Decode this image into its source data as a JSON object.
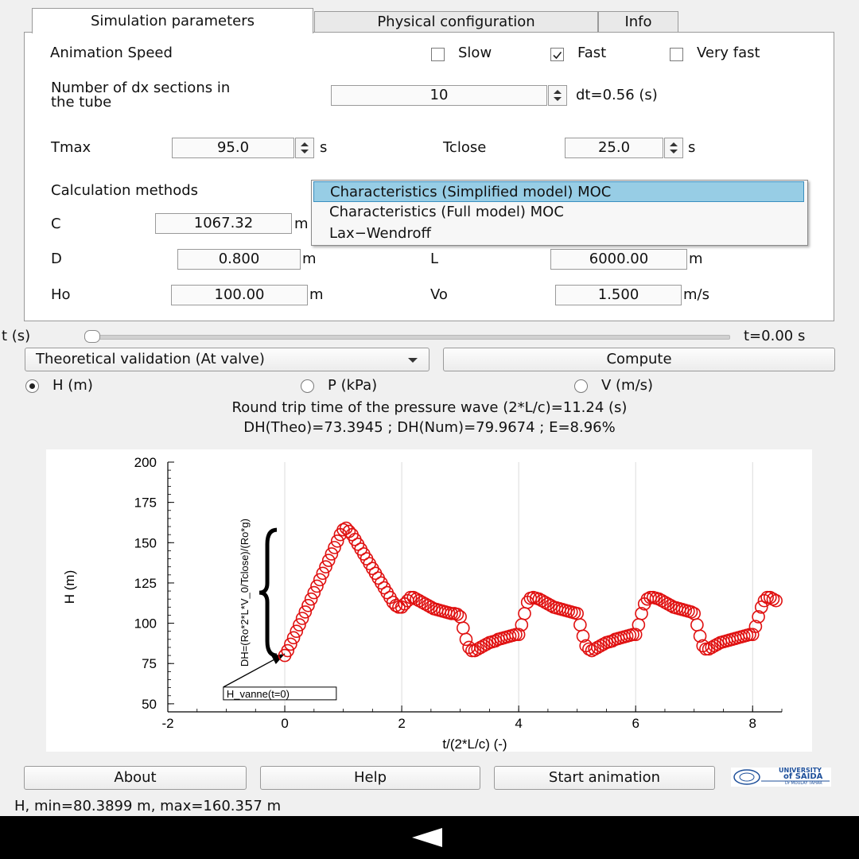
{
  "tabs": [
    {
      "label": "Simulation parameters",
      "active": true
    },
    {
      "label": "Physical configuration",
      "active": false
    },
    {
      "label": "Info",
      "active": false
    }
  ],
  "params": {
    "animation_speed_label": "Animation Speed",
    "speed_options": [
      {
        "label": "Slow",
        "checked": false
      },
      {
        "label": "Fast",
        "checked": true
      },
      {
        "label": "Very fast",
        "checked": false
      }
    ],
    "dx_label_1": "Number of dx sections in",
    "dx_label_2": "the tube",
    "dx_value": "10",
    "dt_text": "dt=0.56 (s)",
    "tmax_label": "Tmax",
    "tmax_value": "95.0",
    "tmax_unit": "s",
    "tclose_label": "Tclose",
    "tclose_value": "25.0",
    "tclose_unit": "s",
    "calc_label": "Calculation methods",
    "c_label": "C",
    "c_value": "1067.32",
    "c_unit": "m",
    "d_label": "D",
    "d_value": "0.800",
    "d_unit": "m",
    "l_label": "L",
    "l_value": "6000.00",
    "l_unit": "m",
    "ho_label": "Ho",
    "ho_value": "100.00",
    "ho_unit": "m",
    "vo_label": "Vo",
    "vo_value": "1.500",
    "vo_unit": "m/s"
  },
  "methods": [
    "Characteristics (Simplified model) MOC",
    "Characteristics (Full model) MOC",
    "Lax−Wendroff"
  ],
  "time_slider": {
    "label": "t (s)",
    "value_text": "t=0.00 s",
    "fraction": 0
  },
  "validation_select": "Theoretical validation (At valve)",
  "compute_label": "Compute",
  "radios": [
    {
      "label": "H (m)",
      "on": true
    },
    {
      "label": "P (kPa)",
      "on": false
    },
    {
      "label": "V (m/s)",
      "on": false
    }
  ],
  "round_trip_text": "Round trip time of the pressure wave (2*L/c)=11.24 (s)",
  "dh_text": "DH(Theo)=73.3945 ; DH(Num)=79.9674 ; E=8.96%",
  "buttons": {
    "about": "About",
    "help": "Help",
    "start": "Start animation"
  },
  "logo": {
    "line1": "UNIVERSITY",
    "line2": "of SAIDA",
    "line3": "Dr MOULAY TAHAR"
  },
  "status_text": "H, min=80.3899 m, max=160.357 m",
  "colors": {
    "accent": "#97cde5",
    "series": "#e01010"
  },
  "chart_data": {
    "type": "scatter",
    "xlabel": "t/(2*L/c) (-)",
    "ylabel": "H (m)",
    "xlim": [
      -2,
      8.5
    ],
    "ylim": [
      45,
      200
    ],
    "x_ticks": [
      -2,
      0,
      2,
      4,
      6,
      8
    ],
    "y_ticks": [
      50,
      75,
      100,
      125,
      150,
      175,
      200
    ],
    "annotation_dh": "DH=(Ro*2*L*V_0/Tclose)/(Ro*g)",
    "annotation_box": "H_vanne(t=0)",
    "series": [
      {
        "color": "#e01010",
        "marker": "open-circle",
        "points": [
          [
            0,
            80
          ],
          [
            0.05,
            83
          ],
          [
            0.1,
            87
          ],
          [
            0.15,
            91
          ],
          [
            0.2,
            95
          ],
          [
            0.25,
            99
          ],
          [
            0.3,
            103
          ],
          [
            0.35,
            107
          ],
          [
            0.4,
            111
          ],
          [
            0.45,
            115
          ],
          [
            0.5,
            119
          ],
          [
            0.55,
            123
          ],
          [
            0.6,
            127
          ],
          [
            0.65,
            131
          ],
          [
            0.7,
            135
          ],
          [
            0.75,
            139
          ],
          [
            0.8,
            143
          ],
          [
            0.85,
            147
          ],
          [
            0.9,
            151
          ],
          [
            0.95,
            155
          ],
          [
            1.0,
            158
          ],
          [
            1.05,
            159
          ],
          [
            1.1,
            157
          ],
          [
            1.15,
            155
          ],
          [
            1.2,
            152
          ],
          [
            1.25,
            149
          ],
          [
            1.3,
            146
          ],
          [
            1.35,
            143
          ],
          [
            1.4,
            140
          ],
          [
            1.45,
            137
          ],
          [
            1.5,
            134
          ],
          [
            1.55,
            131
          ],
          [
            1.6,
            128
          ],
          [
            1.65,
            125
          ],
          [
            1.7,
            122
          ],
          [
            1.75,
            119
          ],
          [
            1.8,
            116
          ],
          [
            1.85,
            113
          ],
          [
            1.9,
            111
          ],
          [
            1.95,
            110
          ],
          [
            2.0,
            110
          ],
          [
            2.05,
            112
          ],
          [
            2.1,
            114
          ],
          [
            2.15,
            116
          ],
          [
            2.2,
            116
          ],
          [
            2.25,
            115
          ],
          [
            2.3,
            114
          ],
          [
            2.35,
            113
          ],
          [
            2.4,
            112
          ],
          [
            2.45,
            111
          ],
          [
            2.5,
            110
          ],
          [
            2.55,
            109
          ],
          [
            2.6,
            108.5
          ],
          [
            2.65,
            108
          ],
          [
            2.7,
            107.5
          ],
          [
            2.75,
            107
          ],
          [
            2.8,
            106.5
          ],
          [
            2.85,
            106
          ],
          [
            2.9,
            106
          ],
          [
            2.95,
            105.5
          ],
          [
            3.0,
            104
          ],
          [
            3.05,
            97
          ],
          [
            3.1,
            90
          ],
          [
            3.15,
            85
          ],
          [
            3.2,
            83
          ],
          [
            3.25,
            83
          ],
          [
            3.3,
            84
          ],
          [
            3.35,
            85
          ],
          [
            3.4,
            86
          ],
          [
            3.45,
            87
          ],
          [
            3.5,
            88
          ],
          [
            3.55,
            88.5
          ],
          [
            3.6,
            89
          ],
          [
            3.65,
            90
          ],
          [
            3.7,
            90.5
          ],
          [
            3.75,
            91
          ],
          [
            3.8,
            91.5
          ],
          [
            3.85,
            92
          ],
          [
            3.9,
            92.5
          ],
          [
            3.95,
            93
          ],
          [
            4.0,
            93
          ],
          [
            4.05,
            99
          ],
          [
            4.1,
            106
          ],
          [
            4.15,
            113
          ],
          [
            4.2,
            115.5
          ],
          [
            4.25,
            116
          ],
          [
            4.3,
            115.5
          ],
          [
            4.35,
            115
          ],
          [
            4.4,
            114
          ],
          [
            4.45,
            113
          ],
          [
            4.5,
            112
          ],
          [
            4.55,
            111
          ],
          [
            4.6,
            110
          ],
          [
            4.65,
            109.5
          ],
          [
            4.7,
            109
          ],
          [
            4.75,
            108.5
          ],
          [
            4.8,
            108
          ],
          [
            4.85,
            107.5
          ],
          [
            4.9,
            107
          ],
          [
            4.95,
            106.5
          ],
          [
            5.0,
            106
          ],
          [
            5.05,
            99
          ],
          [
            5.1,
            92
          ],
          [
            5.15,
            86
          ],
          [
            5.2,
            84
          ],
          [
            5.25,
            83
          ],
          [
            5.3,
            84
          ],
          [
            5.35,
            85
          ],
          [
            5.4,
            86
          ],
          [
            5.45,
            87
          ],
          [
            5.5,
            88
          ],
          [
            5.55,
            88.5
          ],
          [
            5.6,
            89
          ],
          [
            5.65,
            90
          ],
          [
            5.7,
            90.5
          ],
          [
            5.75,
            91
          ],
          [
            5.8,
            91.5
          ],
          [
            5.85,
            92
          ],
          [
            5.9,
            92.5
          ],
          [
            5.95,
            93
          ],
          [
            6.0,
            93
          ],
          [
            6.05,
            99
          ],
          [
            6.1,
            106
          ],
          [
            6.15,
            112
          ],
          [
            6.2,
            115
          ],
          [
            6.25,
            116
          ],
          [
            6.3,
            116
          ],
          [
            6.35,
            115.5
          ],
          [
            6.4,
            115
          ],
          [
            6.45,
            114
          ],
          [
            6.5,
            113
          ],
          [
            6.55,
            112
          ],
          [
            6.6,
            111
          ],
          [
            6.65,
            110
          ],
          [
            6.7,
            109.5
          ],
          [
            6.75,
            109
          ],
          [
            6.8,
            108.5
          ],
          [
            6.85,
            108
          ],
          [
            6.9,
            107.5
          ],
          [
            6.95,
            107
          ],
          [
            7.0,
            106
          ],
          [
            7.05,
            99
          ],
          [
            7.1,
            92
          ],
          [
            7.15,
            86
          ],
          [
            7.2,
            84
          ],
          [
            7.25,
            84
          ],
          [
            7.3,
            85
          ],
          [
            7.35,
            86
          ],
          [
            7.4,
            87
          ],
          [
            7.45,
            88
          ],
          [
            7.5,
            88.5
          ],
          [
            7.55,
            89
          ],
          [
            7.6,
            89.5
          ],
          [
            7.65,
            90
          ],
          [
            7.7,
            90.5
          ],
          [
            7.75,
            91
          ],
          [
            7.8,
            91.5
          ],
          [
            7.85,
            92
          ],
          [
            7.9,
            92.5
          ],
          [
            7.95,
            93
          ],
          [
            8.0,
            93
          ],
          [
            8.05,
            98
          ],
          [
            8.1,
            104
          ],
          [
            8.15,
            110
          ],
          [
            8.2,
            114
          ],
          [
            8.25,
            116
          ],
          [
            8.3,
            116
          ],
          [
            8.35,
            115
          ],
          [
            8.4,
            114
          ]
        ]
      }
    ]
  }
}
